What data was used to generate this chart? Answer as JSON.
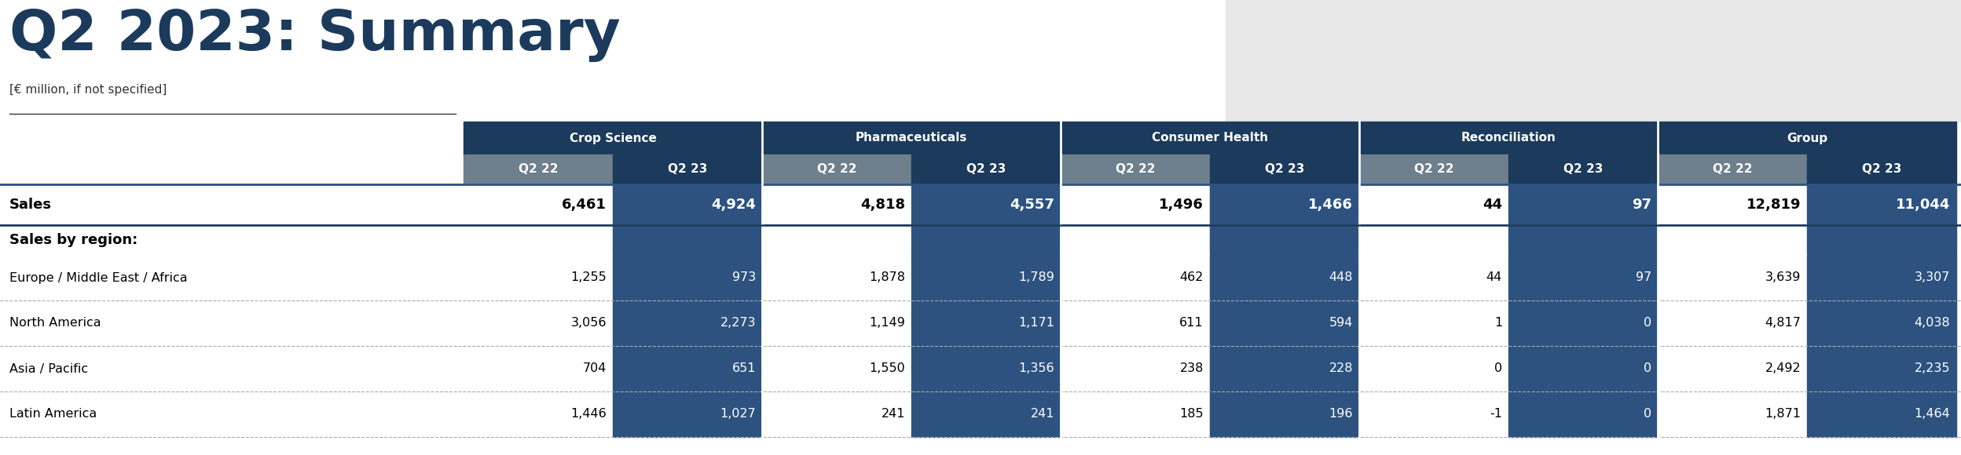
{
  "title": "Q2 2023: Summary",
  "subtitle": "[€ million, if not specified]",
  "background_color": "#ffffff",
  "dark_blue": "#1b3a5c",
  "gray_header": "#6e7f8d",
  "cell_dark": "#2d5280",
  "col_groups": [
    "Crop Science",
    "Pharmaceuticals",
    "Consumer Health",
    "Reconciliation",
    "Group"
  ],
  "col_subheaders": [
    "Q2 22",
    "Q2 23",
    "Q2 22",
    "Q2 23",
    "Q2 22",
    "Q2 23",
    "Q2 22",
    "Q2 23",
    "Q2 22",
    "Q2 23"
  ],
  "rows": [
    {
      "label": "Sales",
      "values": [
        "6,461",
        "4,924",
        "4,818",
        "4,557",
        "1,496",
        "1,466",
        "44",
        "97",
        "12,819",
        "11,044"
      ],
      "bold": true,
      "top_line": true,
      "bottom_line": true,
      "line_color": "#2d5280"
    },
    {
      "label": "Sales by region:",
      "values": [
        "",
        "",
        "",
        "",
        "",
        "",
        "",
        "",
        "",
        ""
      ],
      "bold": true,
      "top_line": true,
      "bottom_line": false,
      "is_section_header": true,
      "line_color": "#999999"
    },
    {
      "label": "Europe / Middle East / Africa",
      "values": [
        "1,255",
        "973",
        "1,878",
        "1,789",
        "462",
        "448",
        "44",
        "97",
        "3,639",
        "3,307"
      ],
      "bold": false,
      "top_line": false,
      "bottom_line": true,
      "line_color": "#aaaaaa"
    },
    {
      "label": "North America",
      "values": [
        "3,056",
        "2,273",
        "1,149",
        "1,171",
        "611",
        "594",
        "1",
        "0",
        "4,817",
        "4,038"
      ],
      "bold": false,
      "top_line": false,
      "bottom_line": true,
      "line_color": "#aaaaaa"
    },
    {
      "label": "Asia / Pacific",
      "values": [
        "704",
        "651",
        "1,550",
        "1,356",
        "238",
        "228",
        "0",
        "0",
        "2,492",
        "2,235"
      ],
      "bold": false,
      "top_line": false,
      "bottom_line": true,
      "line_color": "#aaaaaa"
    },
    {
      "label": "Latin America",
      "values": [
        "1,446",
        "1,027",
        "241",
        "241",
        "185",
        "196",
        "-1",
        "0",
        "1,871",
        "1,464"
      ],
      "bold": false,
      "top_line": false,
      "bottom_line": true,
      "line_color": "#aaaaaa"
    }
  ]
}
